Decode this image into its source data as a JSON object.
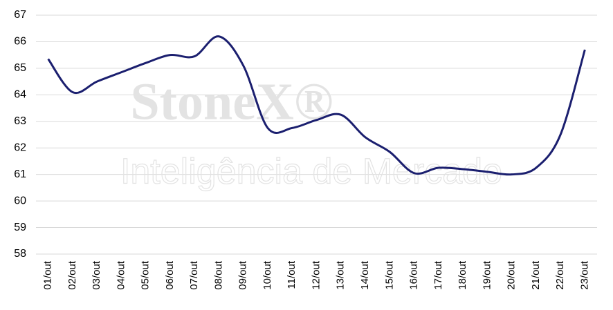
{
  "chart_data": {
    "type": "line",
    "watermark": {
      "brand": "StoneX®",
      "tagline": "Inteligência de Mercado"
    },
    "categories": [
      "01/out",
      "02/out",
      "03/out",
      "04/out",
      "05/out",
      "06/out",
      "07/out",
      "08/out",
      "09/out",
      "10/out",
      "11/out",
      "12/out",
      "13/out",
      "14/out",
      "15/out",
      "16/out",
      "17/out",
      "18/out",
      "19/out",
      "20/out",
      "21/out",
      "22/out",
      "23/out"
    ],
    "values": [
      65.35,
      64.1,
      64.5,
      64.85,
      65.2,
      65.5,
      65.45,
      66.2,
      65.1,
      62.75,
      62.75,
      63.05,
      63.25,
      62.4,
      61.85,
      61.05,
      61.25,
      61.2,
      61.1,
      61.0,
      61.25,
      62.5,
      65.7
    ],
    "color": "#1b1f6f",
    "ylim": [
      58,
      67
    ],
    "yticks": [
      58,
      59,
      60,
      61,
      62,
      63,
      64,
      65,
      66,
      67
    ],
    "grid": true
  }
}
